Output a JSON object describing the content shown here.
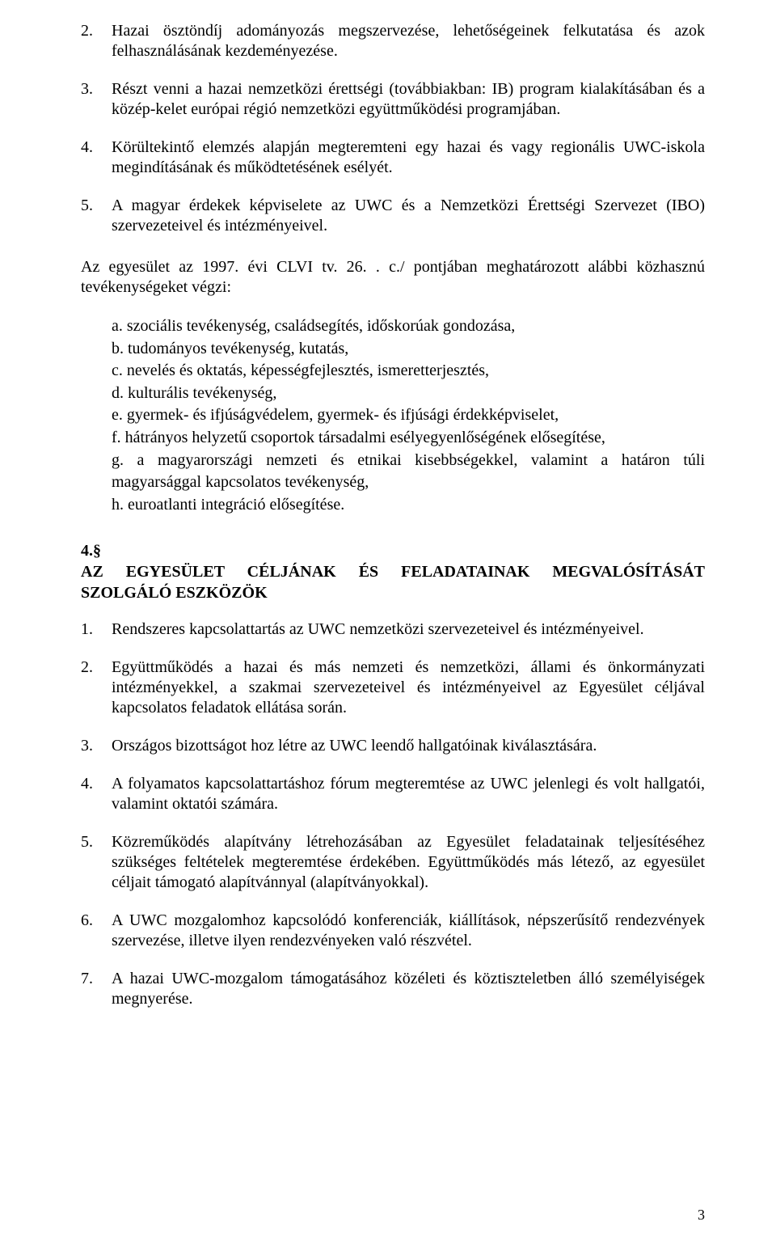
{
  "colors": {
    "background": "#ffffff",
    "text": "#000000"
  },
  "typography": {
    "font_family": "Times New Roman",
    "body_fontsize_pt": 15,
    "heading_fontsize_pt": 15,
    "heading_weight": "bold"
  },
  "top_list": [
    {
      "n": "2.",
      "text": "Hazai ösztöndíj adományozás megszervezése, lehetőségeinek felkutatása és azok felhasználásának kezdeményezése."
    },
    {
      "n": "3.",
      "text": "Részt venni a hazai nemzetközi érettségi (továbbiakban: IB) program kialakításában és a közép-kelet európai régió nemzetközi együttműködési programjában."
    },
    {
      "n": "4.",
      "text": "Körültekintő elemzés alapján megteremteni egy hazai és vagy regionális UWC-iskola megindításának és működtetésének esélyét."
    },
    {
      "n": "5.",
      "text": "A magyar érdekek képviselete az UWC és a Nemzetközi Érettségi Szervezet (IBO) szervezeteivel és intézményeivel."
    }
  ],
  "intro": "Az egyesület az 1997. évi CLVI tv. 26. . c./ pontjában meghatározott alábbi közhasznú tevékenységeket végzi:",
  "sub_list": [
    "a. szociális tevékenység, családsegítés, időskorúak gondozása,",
    "b. tudományos tevékenység, kutatás,",
    "c. nevelés és oktatás, képességfejlesztés, ismeretterjesztés,",
    "d. kulturális tevékenység,",
    "e. gyermek- és ifjúságvédelem, gyermek- és ifjúsági érdekképviselet,",
    "f. hátrányos helyzetű csoportok társadalmi esélyegyenlőségének elősegítése,",
    "g. a magyarországi nemzeti és etnikai kisebbségekkel, valamint a határon túli magyarsággal kapcsolatos tevékenység,",
    "h. euroatlanti integráció elősegítése."
  ],
  "section4": {
    "num": "4.§",
    "title": "AZ EGYESÜLET CÉLJÁNAK ÉS FELADATAINAK MEGVALÓSÍTÁSÁT SZOLGÁLÓ ESZKÖZÖK"
  },
  "bottom_list": [
    {
      "n": "1.",
      "text": "Rendszeres kapcsolattartás az UWC nemzetközi szervezeteivel és intézményeivel."
    },
    {
      "n": "2.",
      "text": "Együttműködés a hazai és más nemzeti és nemzetközi, állami és önkormányzati intézményekkel, a szakmai szervezeteivel és intézményeivel az Egyesület céljával kapcsolatos feladatok ellátása során."
    },
    {
      "n": "3.",
      "text": "Országos bizottságot hoz létre az UWC leendő hallgatóinak kiválasztására."
    },
    {
      "n": "4.",
      "text": "A folyamatos kapcsolattartáshoz fórum megteremtése az UWC jelenlegi és volt hallgatói, valamint oktatói számára."
    },
    {
      "n": "5.",
      "text": "Közreműködés alapítvány létrehozásában az Egyesület feladatainak teljesítéséhez szükséges feltételek megteremtése érdekében. Együttműködés más létező, az egyesület céljait támogató alapítvánnyal (alapítványokkal)."
    },
    {
      "n": "6.",
      "text": "A UWC mozgalomhoz kapcsolódó konferenciák, kiállítások, népszerűsítő rendezvények szervezése, illetve ilyen rendezvényeken való részvétel."
    },
    {
      "n": "7.",
      "text": "A hazai UWC-mozgalom támogatásához közéleti és köztiszteletben álló személyiségek megnyerése."
    }
  ],
  "page_number": "3"
}
